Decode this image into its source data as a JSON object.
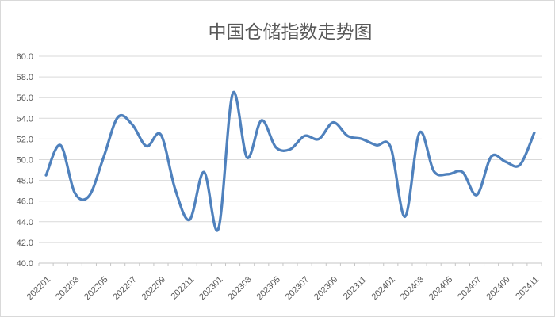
{
  "chart_data": {
    "type": "line",
    "title": "中国仓储指数走势图",
    "categories": [
      "202201",
      "202202",
      "202203",
      "202204",
      "202205",
      "202206",
      "202207",
      "202208",
      "202209",
      "202210",
      "202211",
      "202212",
      "202301",
      "202302",
      "202303",
      "202304",
      "202305",
      "202306",
      "202307",
      "202308",
      "202309",
      "202310",
      "202311",
      "202312",
      "202401",
      "202402",
      "202403",
      "202404",
      "202405",
      "202406",
      "202407",
      "202408",
      "202409",
      "202410",
      "202411"
    ],
    "values": [
      48.5,
      51.4,
      46.8,
      46.5,
      50.2,
      54.1,
      53.4,
      51.3,
      52.4,
      47.1,
      44.2,
      48.8,
      43.3,
      56.4,
      50.2,
      53.8,
      51.2,
      51.0,
      52.3,
      52.0,
      53.6,
      52.3,
      52.0,
      51.4,
      51.2,
      44.5,
      52.6,
      48.9,
      48.6,
      48.8,
      46.6,
      50.3,
      49.8,
      49.5,
      52.6
    ],
    "series_count": 1,
    "xlabel": "",
    "ylabel": "",
    "ylim": [
      40.0,
      60.0
    ],
    "y_tick_step": 2.0,
    "y_tick_labels": [
      "60.0",
      "58.0",
      "56.0",
      "54.0",
      "52.0",
      "50.0",
      "48.0",
      "46.0",
      "44.0",
      "42.0",
      "40.0"
    ],
    "x_tick_labels": [
      "202201",
      "202203",
      "202205",
      "202207",
      "202209",
      "202211",
      "202301",
      "202303",
      "202305",
      "202307",
      "202309",
      "202311",
      "202401",
      "202403",
      "202405",
      "202407",
      "202409",
      "202411"
    ],
    "x_tick_labels_shown_every": 2,
    "x_label_rotation": -45,
    "grid": "horizontal",
    "legend": "none",
    "line_smoothing": true
  },
  "colors": {
    "line": "#4F81BD",
    "grid": "#D9D9D9",
    "axis": "#C6C6C6",
    "text": "#595959",
    "title_text": "#595959",
    "background": "#FFFFFF",
    "border": "#D9D9D9"
  }
}
